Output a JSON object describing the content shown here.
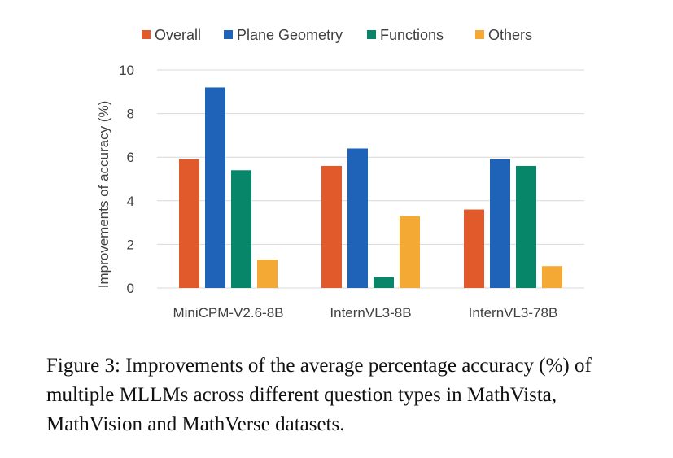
{
  "chart_data": {
    "type": "bar",
    "categories": [
      "MiniCPM-V2.6-8B",
      "InternVL3-8B",
      "InternVL3-78B"
    ],
    "series": [
      {
        "name": "Overall",
        "color": "#E05A2B",
        "values": [
          5.9,
          5.6,
          3.6
        ]
      },
      {
        "name": "Plane Geometry",
        "color": "#1F63B8",
        "values": [
          9.2,
          6.4,
          5.9
        ]
      },
      {
        "name": "Functions",
        "color": "#08866A",
        "values": [
          5.4,
          0.5,
          5.6
        ]
      },
      {
        "name": "Others",
        "color": "#F3A933",
        "values": [
          1.3,
          3.3,
          1.0
        ]
      }
    ],
    "ylabel": "Improvements of accuracy (%)",
    "ylim": [
      0,
      10
    ],
    "yticks": [
      "0",
      "2",
      "4",
      "6",
      "8",
      "10"
    ],
    "grid": true,
    "legend": "top"
  },
  "caption": "Figure 3: Improvements of the average percentage accuracy (%) of multiple MLLMs across different question types in MathVista, MathVision and MathVerse datasets."
}
